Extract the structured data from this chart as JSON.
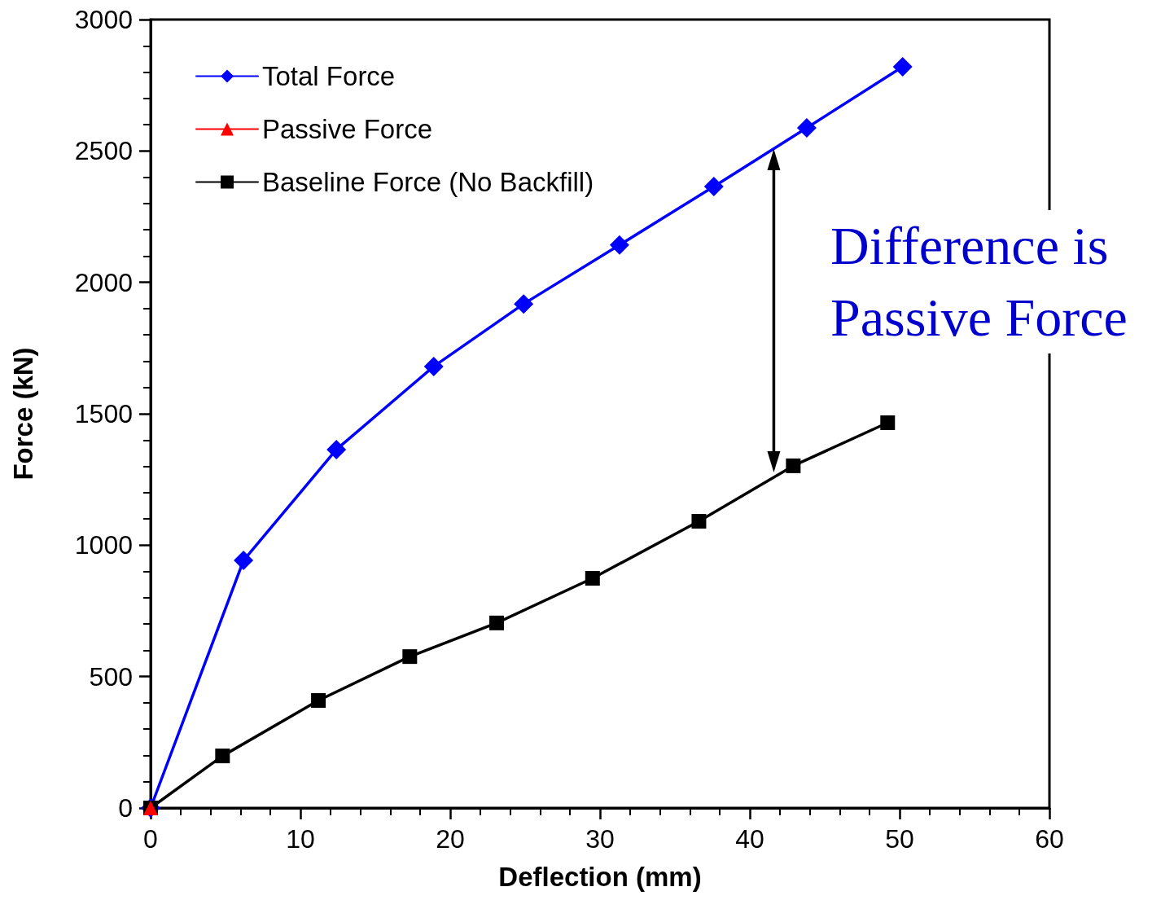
{
  "chart_data": {
    "type": "line",
    "xlabel": "Deflection (mm)",
    "ylabel": "Force (kN)",
    "xlim": [
      0,
      60
    ],
    "xticks": [
      0,
      10,
      20,
      30,
      40,
      50,
      60
    ],
    "ylim": [
      0,
      3000
    ],
    "yticks": [
      0,
      500,
      1000,
      1500,
      2000,
      2500,
      3000
    ],
    "series": [
      {
        "name": "Total Force",
        "color": "#0000ff",
        "marker": "diamond",
        "x": [
          0,
          6.2,
          12.4,
          18.9,
          24.9,
          31.3,
          37.6,
          43.8,
          50.2
        ],
        "values": [
          0,
          942,
          1364,
          1680,
          1918,
          2142,
          2365,
          2588,
          2820
        ]
      },
      {
        "name": "Passive Force",
        "color": "#ff0000",
        "marker": "triangle",
        "x": [
          0
        ],
        "values": [
          0
        ]
      },
      {
        "name": "Baseline Force (No Backfill)",
        "color": "#000000",
        "marker": "square",
        "x": [
          0,
          4.8,
          11.2,
          17.3,
          23.1,
          29.5,
          36.6,
          42.9,
          49.2
        ],
        "values": [
          0,
          198,
          409,
          576,
          704,
          874,
          1091,
          1302,
          1466
        ]
      }
    ],
    "annotations": [
      {
        "text": "Difference is Passive Force",
        "x": 41.6,
        "y": 2507
      }
    ],
    "legend": "top left",
    "grid": false,
    "line_style": "solid"
  }
}
